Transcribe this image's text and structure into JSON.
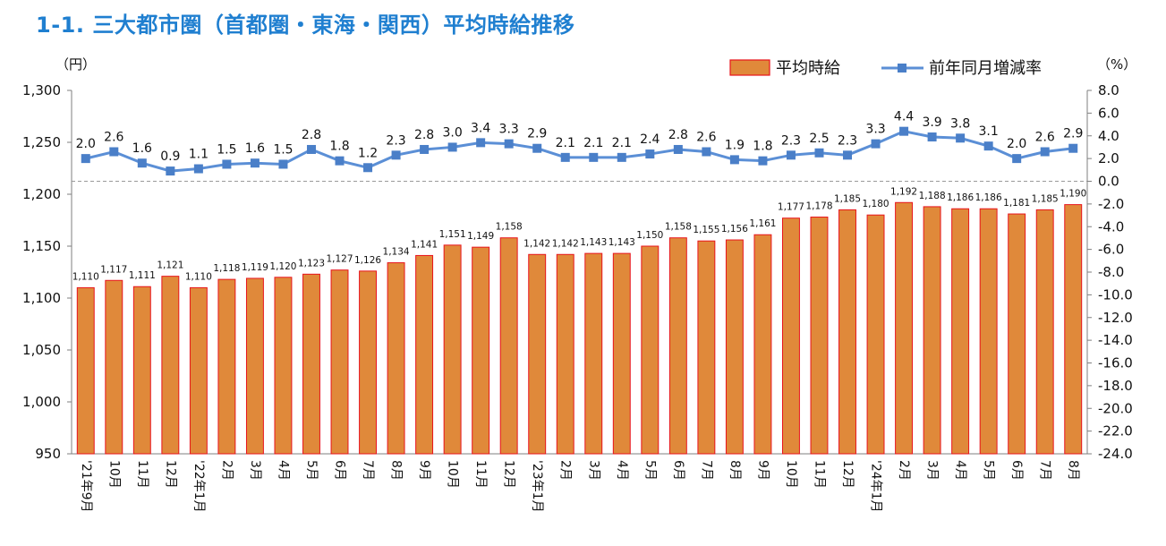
{
  "title": "1-1. 三大都市圏（首都圏・東海・関西）平均時給推移",
  "chart_data": {
    "type": "bar",
    "title": "1-1. 三大都市圏（首都圏・東海・関西）平均時給推移",
    "y_left_unit": "（円）",
    "y_right_unit": "（%）",
    "ylim_left": [
      950,
      1300
    ],
    "yticks_left": [
      "1,300",
      "1,250",
      "1,200",
      "1,150",
      "1,100",
      "1,050",
      "1,000",
      "950"
    ],
    "ylim_right": [
      -24.0,
      8.0
    ],
    "yticks_right": [
      "8.0",
      "6.0",
      "4.0",
      "2.0",
      "0.0",
      "-2.0",
      "-4.0",
      "-6.0",
      "-8.0",
      "-10.0",
      "-12.0",
      "-14.0",
      "-16.0",
      "-18.0",
      "-20.0",
      "-22.0",
      "-24.0"
    ],
    "categories": [
      "'21年9月",
      "10月",
      "11月",
      "12月",
      "'22年1月",
      "2月",
      "3月",
      "4月",
      "5月",
      "6月",
      "7月",
      "8月",
      "9月",
      "10月",
      "11月",
      "12月",
      "'23年1月",
      "2月",
      "3月",
      "4月",
      "5月",
      "6月",
      "7月",
      "8月",
      "9月",
      "10月",
      "11月",
      "12月",
      "'24年1月",
      "2月",
      "3月",
      "4月",
      "5月",
      "6月",
      "7月",
      "8月"
    ],
    "series": [
      {
        "name": "平均時給",
        "axis": "left",
        "type": "bar",
        "color": "#e0893a",
        "edge_color": "#e8141c",
        "values": [
          1110,
          1117,
          1111,
          1121,
          1110,
          1118,
          1119,
          1120,
          1123,
          1127,
          1126,
          1134,
          1141,
          1151,
          1149,
          1158,
          1142,
          1142,
          1143,
          1143,
          1150,
          1158,
          1155,
          1156,
          1161,
          1177,
          1178,
          1185,
          1180,
          1192,
          1188,
          1186,
          1186,
          1181,
          1185,
          1190
        ],
        "labels": [
          "1,110",
          "1,117",
          "1,111",
          "1,121",
          "1,110",
          "1,118",
          "1,119",
          "1,120",
          "1,123",
          "1,127",
          "1,126",
          "1,134",
          "1,141",
          "1,151",
          "1,149",
          "1,158",
          "1,142",
          "1,142",
          "1,143",
          "1,143",
          "1,150",
          "1,158",
          "1,155",
          "1,156",
          "1,161",
          "1,177",
          "1,178",
          "1,185",
          "1,180",
          "1,192",
          "1,188",
          "1,186",
          "1,186",
          "1,181",
          "1,185",
          "1,190"
        ]
      },
      {
        "name": "前年同月増減率",
        "axis": "right",
        "type": "line",
        "color": "#5b8fd6",
        "values": [
          2.0,
          2.6,
          1.6,
          0.9,
          1.1,
          1.5,
          1.6,
          1.5,
          2.8,
          1.8,
          1.2,
          2.3,
          2.8,
          3.0,
          3.4,
          3.3,
          2.9,
          2.1,
          2.1,
          2.1,
          2.4,
          2.8,
          2.6,
          1.9,
          1.8,
          2.3,
          2.5,
          2.3,
          3.3,
          4.4,
          3.9,
          3.8,
          3.1,
          2.0,
          2.6,
          2.9
        ],
        "labels": [
          "2.0",
          "2.6",
          "1.6",
          "0.9",
          "1.1",
          "1.5",
          "1.6",
          "1.5",
          "2.8",
          "1.8",
          "1.2",
          "2.3",
          "2.8",
          "3.0",
          "3.4",
          "3.3",
          "2.9",
          "2.1",
          "2.1",
          "2.1",
          "2.4",
          "2.8",
          "2.6",
          "1.9",
          "1.8",
          "2.3",
          "2.5",
          "2.3",
          "3.3",
          "4.4",
          "3.9",
          "3.8",
          "3.1",
          "2.0",
          "2.6",
          "2.9"
        ]
      }
    ],
    "zero_line": "dashed",
    "legend_position": "top-right",
    "grid": false
  }
}
